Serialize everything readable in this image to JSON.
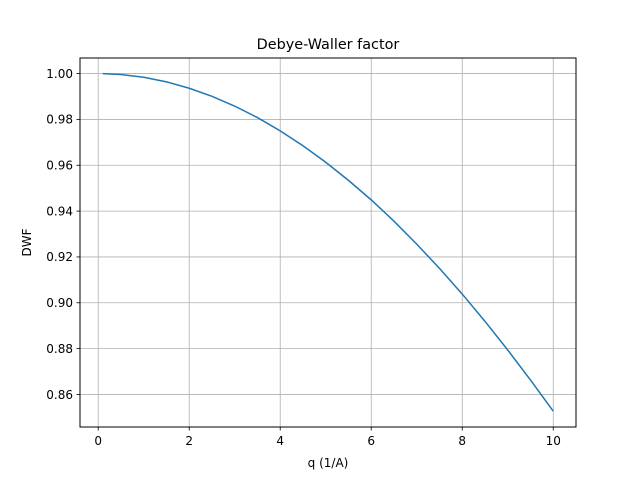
{
  "chart_data": {
    "type": "line",
    "title": "Debye-Waller factor",
    "xlabel": "q (1/A)",
    "ylabel": "DWF",
    "xlim": [
      -0.4,
      10.5
    ],
    "ylim": [
      0.8458,
      1.0068
    ],
    "x_ticks": [
      0,
      2,
      4,
      6,
      8,
      10
    ],
    "x_tick_labels": [
      "0",
      "2",
      "4",
      "6",
      "8",
      "10"
    ],
    "y_ticks": [
      0.86,
      0.88,
      0.9,
      0.92,
      0.94,
      0.96,
      0.98,
      1.0
    ],
    "y_tick_labels": [
      "0.86",
      "0.88",
      "0.90",
      "0.92",
      "0.94",
      "0.96",
      "0.98",
      "1.00"
    ],
    "grid": true,
    "series": [
      {
        "color": "#1f77b4",
        "x": [
          0.1,
          0.5,
          1.0,
          1.5,
          2.0,
          2.5,
          3.0,
          3.5,
          4.0,
          4.5,
          5.0,
          5.5,
          6.0,
          6.5,
          7.0,
          7.5,
          8.0,
          8.5,
          9.0,
          9.5,
          10.0
        ],
        "y": [
          1.0,
          0.9996,
          0.9984,
          0.9964,
          0.9936,
          0.9901,
          0.9858,
          0.9808,
          0.975,
          0.9685,
          0.9613,
          0.9534,
          0.9449,
          0.9356,
          0.9256,
          0.915,
          0.9038,
          0.8919,
          0.8794,
          0.8663,
          0.8527
        ]
      }
    ]
  }
}
